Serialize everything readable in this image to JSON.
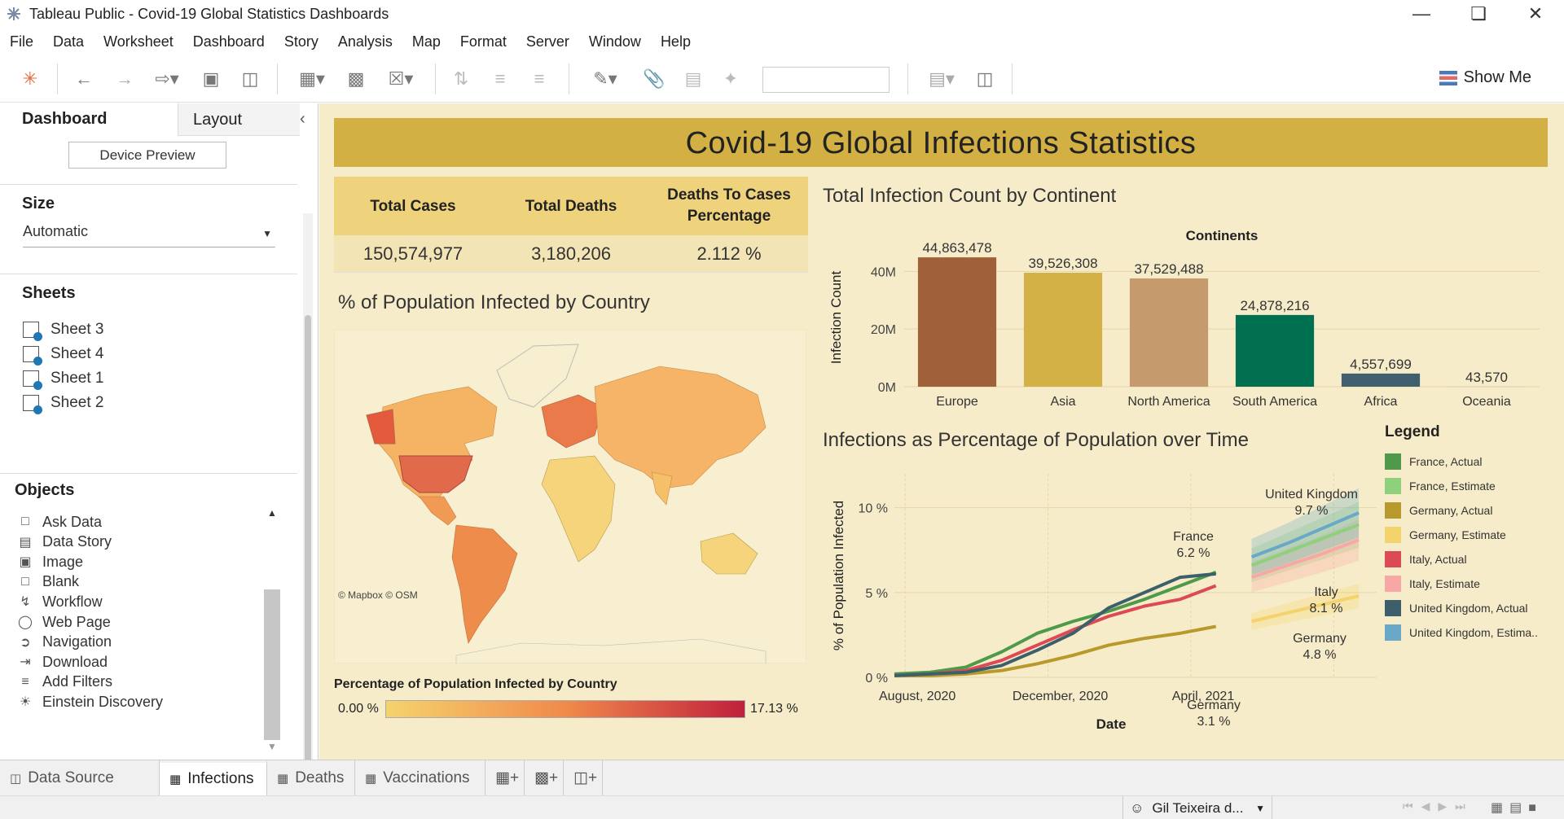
{
  "window": {
    "title": "Tableau Public - Covid-19 Global Statistics Dashboards"
  },
  "menu": [
    "File",
    "Data",
    "Worksheet",
    "Dashboard",
    "Story",
    "Analysis",
    "Map",
    "Format",
    "Server",
    "Window",
    "Help"
  ],
  "toolbar": {
    "show_me": "Show Me"
  },
  "sidebar": {
    "tab_dashboard": "Dashboard",
    "tab_layout": "Layout",
    "device_preview": "Device Preview",
    "size_title": "Size",
    "size_value": "Automatic",
    "sheets_title": "Sheets",
    "sheets": [
      "Sheet 3",
      "Sheet 4",
      "Sheet 1",
      "Sheet 2"
    ],
    "objects_title": "Objects",
    "objects": [
      {
        "label": "Ask Data",
        "icon": "ask-data-icon"
      },
      {
        "label": "Data Story",
        "icon": "data-story-icon"
      },
      {
        "label": "Image",
        "icon": "image-icon"
      },
      {
        "label": "Blank",
        "icon": "blank-icon"
      },
      {
        "label": "Workflow",
        "icon": "workflow-icon"
      },
      {
        "label": "Web Page",
        "icon": "globe-icon"
      },
      {
        "label": "Navigation",
        "icon": "navigation-icon"
      },
      {
        "label": "Download",
        "icon": "download-icon"
      },
      {
        "label": "Add Filters",
        "icon": "filter-icon"
      },
      {
        "label": "Einstein Discovery",
        "icon": "einstein-icon"
      }
    ]
  },
  "dashboard": {
    "title": "Covid-19 Global Infections Statistics",
    "kpis": {
      "h1": "Total Cases",
      "h2": "Total Deaths",
      "h3a": "Deaths To Cases",
      "h3b": "Percentage",
      "v1": "150,574,977",
      "v2": "3,180,206",
      "v3": "2.112 %"
    },
    "map": {
      "title": "% of Population Infected by Country",
      "attribution": "© Mapbox © OSM",
      "legend_title": "Percentage of Population Infected by Country",
      "min_label": "0.00 %",
      "max_label": "17.13 %"
    },
    "legend": {
      "title": "Legend",
      "items": [
        {
          "label": "France, Actual",
          "color": "#4e9a4a"
        },
        {
          "label": "France, Estimate",
          "color": "#8fd07c"
        },
        {
          "label": "Germany, Actual",
          "color": "#b89a2c"
        },
        {
          "label": "Germany, Estimate",
          "color": "#f4d36d"
        },
        {
          "label": "Italy, Actual",
          "color": "#dc4b55"
        },
        {
          "label": "Italy, Estimate",
          "color": "#f7a7a6"
        },
        {
          "label": "United Kingdom, Actual",
          "color": "#3d5f6c"
        },
        {
          "label": "United Kingdom, Estima..",
          "color": "#6aa8c8"
        }
      ]
    }
  },
  "chart_data": [
    {
      "type": "bar",
      "title": "Total Infection Count by Continent",
      "subtitle": "Continents",
      "ylabel": "Infection Count",
      "categories": [
        "Europe",
        "Asia",
        "North America",
        "South America",
        "Africa",
        "Oceania"
      ],
      "values": [
        44863478,
        39526308,
        37529488,
        24878216,
        4557699,
        43570
      ],
      "value_labels": [
        "44,863,478",
        "39,526,308",
        "37,529,488",
        "24,878,216",
        "4,557,699",
        "43,570"
      ],
      "colors": [
        "#a0603a",
        "#d4b147",
        "#c59a6c",
        "#007050",
        "#3f5f6e",
        "#c9c9a0"
      ],
      "yticks": [
        "0M",
        "20M",
        "40M"
      ],
      "ylim": [
        0,
        48000000
      ]
    },
    {
      "type": "line",
      "title": "Infections as Percentage of Population over Time",
      "xlabel": "Date",
      "ylabel": "% of Population Infected",
      "xticks": [
        "August, 2020",
        "December, 2020",
        "April, 2021"
      ],
      "yticks": [
        "0 %",
        "5 %",
        "10 %"
      ],
      "ylim": [
        0,
        12
      ],
      "annotations": [
        {
          "country": "United Kingdom",
          "value": "9.7 %"
        },
        {
          "country": "France",
          "value": "6.2 %"
        },
        {
          "country": "Italy",
          "value": "8.1 %"
        },
        {
          "country": "Germany",
          "value": "4.8 %"
        },
        {
          "country": "Germany",
          "value": "3.1 %"
        }
      ],
      "series": [
        {
          "name": "France, Actual",
          "color": "#4e9a4a",
          "t": [
            0,
            1,
            2,
            3,
            4,
            5,
            6,
            7,
            8,
            9
          ],
          "values": [
            0.2,
            0.3,
            0.6,
            1.5,
            2.6,
            3.3,
            3.9,
            4.6,
            5.4,
            6.2
          ]
        },
        {
          "name": "Germany, Actual",
          "color": "#b89a2c",
          "t": [
            0,
            1,
            2,
            3,
            4,
            5,
            6,
            7,
            8,
            9
          ],
          "values": [
            0.1,
            0.1,
            0.2,
            0.4,
            0.8,
            1.3,
            1.9,
            2.3,
            2.6,
            3.0
          ]
        },
        {
          "name": "Italy, Actual",
          "color": "#dc4b55",
          "t": [
            0,
            1,
            2,
            3,
            4,
            5,
            6,
            7,
            8,
            9
          ],
          "values": [
            0.1,
            0.2,
            0.4,
            1.0,
            1.9,
            2.8,
            3.6,
            4.2,
            4.6,
            5.4
          ]
        },
        {
          "name": "United Kingdom, Actual",
          "color": "#3d5f6c",
          "t": [
            0,
            1,
            2,
            3,
            4,
            5,
            6,
            7,
            8,
            9
          ],
          "values": [
            0.1,
            0.2,
            0.3,
            0.7,
            1.6,
            2.6,
            4.1,
            5.0,
            5.9,
            6.1
          ]
        },
        {
          "name": "France, Estimate",
          "color": "#8fd07c",
          "t": [
            10,
            11,
            12,
            13
          ],
          "values": [
            6.6,
            7.4,
            8.2,
            9.0
          ]
        },
        {
          "name": "Germany, Estimate",
          "color": "#f4d36d",
          "t": [
            10,
            11,
            12,
            13
          ],
          "values": [
            3.3,
            3.8,
            4.3,
            4.8
          ]
        },
        {
          "name": "Italy, Estimate",
          "color": "#f7a7a6",
          "t": [
            10,
            11,
            12,
            13
          ],
          "values": [
            5.9,
            6.6,
            7.3,
            8.1
          ]
        },
        {
          "name": "United Kingdom, Estima..",
          "color": "#6aa8c8",
          "t": [
            10,
            11,
            12,
            13
          ],
          "values": [
            7.1,
            7.9,
            8.8,
            9.7
          ]
        }
      ]
    }
  ],
  "tabs": {
    "data_source": "Data Source",
    "sheets": [
      "Infections",
      "Deaths",
      "Vaccinations"
    ]
  },
  "status": {
    "user": "Gil Teixeira d..."
  }
}
